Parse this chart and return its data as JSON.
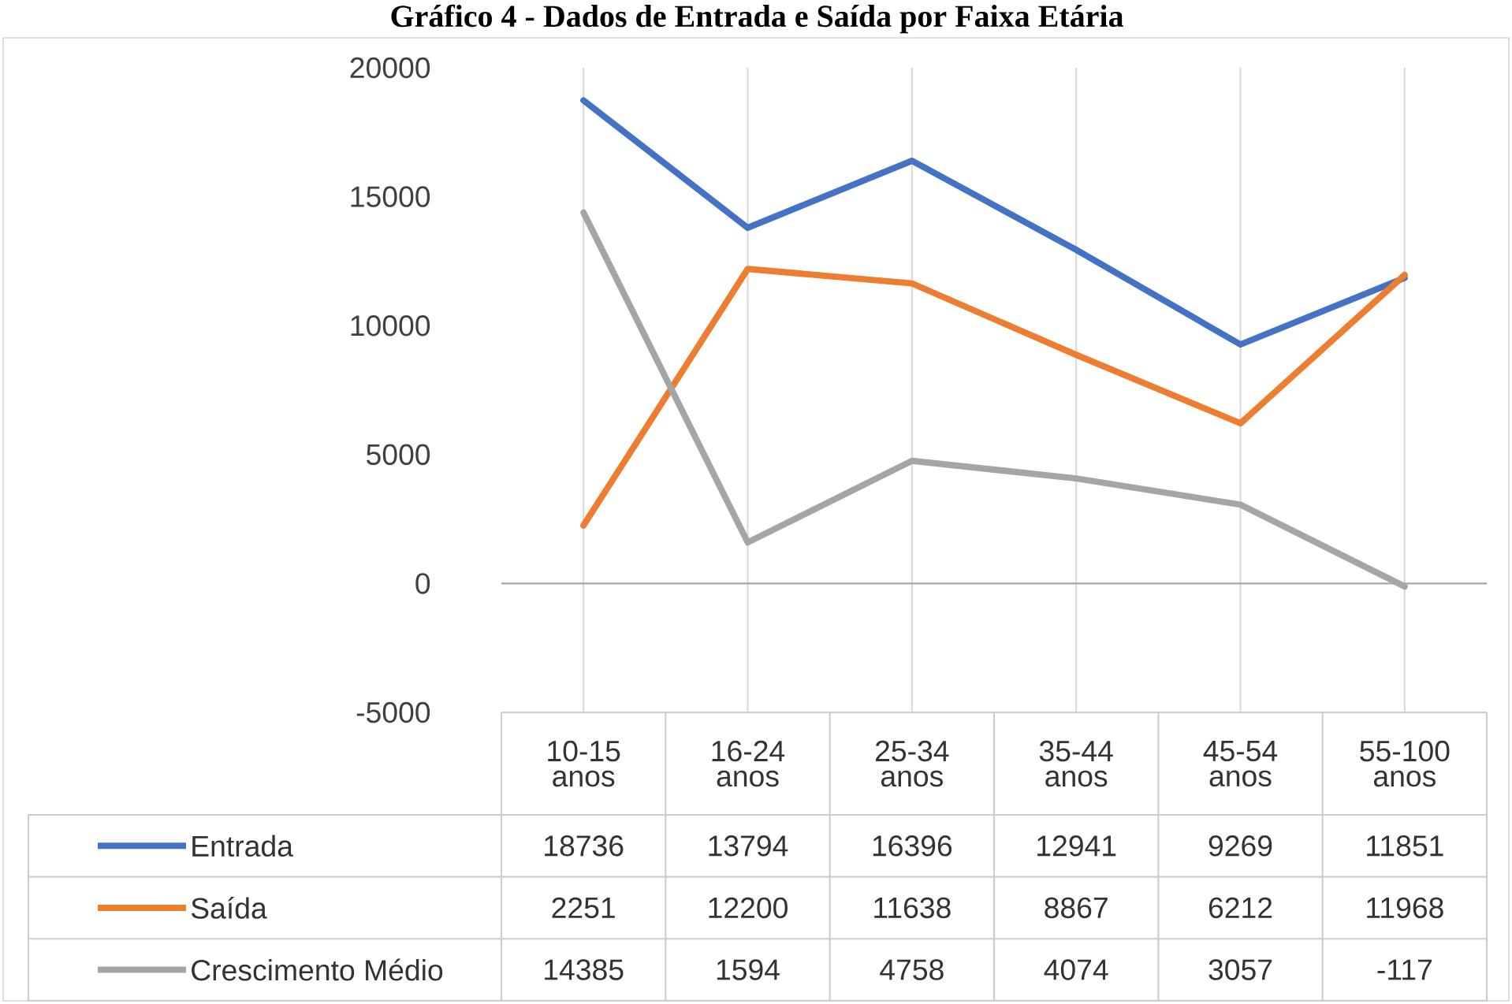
{
  "chart_data": {
    "type": "line",
    "title": "Gráfico 4 - Dados de Entrada e Saída por Faixa Etária",
    "categories": [
      "10-15 anos",
      "16-24 anos",
      "25-34 anos",
      "35-44 anos",
      "45-54 anos",
      "55-100 anos"
    ],
    "series": [
      {
        "name": "Entrada",
        "color": "#4472c4",
        "values": [
          18736,
          13794,
          16396,
          12941,
          9269,
          11851
        ]
      },
      {
        "name": "Saída",
        "color": "#ed7d31",
        "values": [
          2251,
          12200,
          11638,
          8867,
          6212,
          11968
        ]
      },
      {
        "name": "Crescimento Médio",
        "color": "#a5a5a5",
        "values": [
          14385,
          1594,
          4758,
          4074,
          3057,
          -117
        ]
      }
    ],
    "ylim": [
      -5000,
      20000
    ],
    "yticks": [
      -5000,
      0,
      5000,
      10000,
      15000,
      20000
    ],
    "grid": "x",
    "legend": "bottom",
    "data_labels": true
  }
}
